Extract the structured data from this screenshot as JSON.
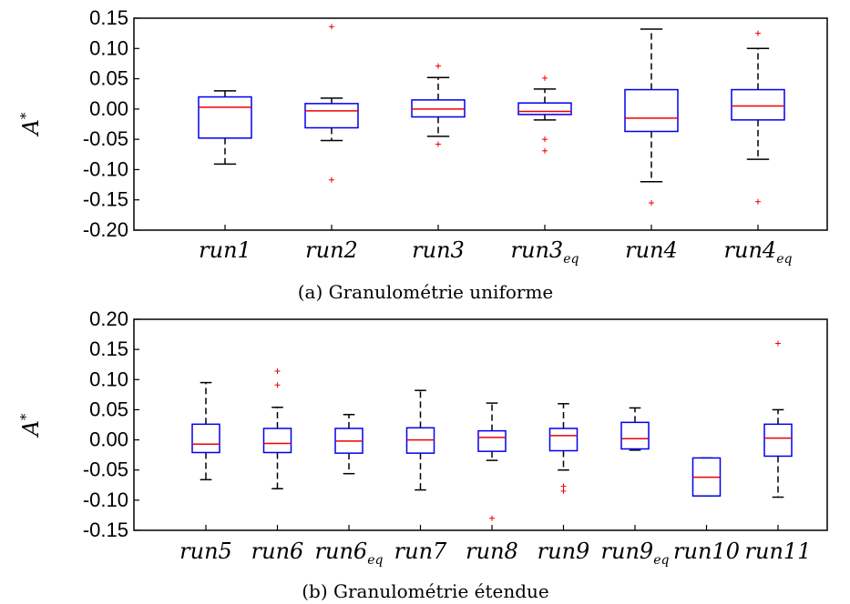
{
  "chart_data": [
    {
      "type": "box",
      "caption": "(a) Granulométrie uniforme",
      "ylabel": "A",
      "ylabel_sup": "*",
      "ylim": [
        -0.2,
        0.15
      ],
      "yticks": [
        "-0.20",
        "-0.15",
        "-0.10",
        "-0.05",
        "0.00",
        "0.05",
        "0.10",
        "0.15"
      ],
      "grid": false,
      "box_color": "#0000ee",
      "median_color": "#ee0000",
      "outlier_color": "#ee0000",
      "categories": [
        {
          "base": "run1",
          "sub": ""
        },
        {
          "base": "run2",
          "sub": ""
        },
        {
          "base": "run3",
          "sub": ""
        },
        {
          "base": "run3",
          "sub": "eq"
        },
        {
          "base": "run4",
          "sub": ""
        },
        {
          "base": "run4",
          "sub": "eq"
        }
      ],
      "boxes": [
        {
          "whislo": -0.091,
          "q1": -0.048,
          "med": 0.003,
          "q3": 0.02,
          "whishi": 0.03,
          "fliers": []
        },
        {
          "whislo": -0.052,
          "q1": -0.031,
          "med": -0.003,
          "q3": 0.009,
          "whishi": 0.018,
          "fliers": [
            0.136,
            -0.117
          ]
        },
        {
          "whislo": -0.045,
          "q1": -0.013,
          "med": 0.0,
          "q3": 0.015,
          "whishi": 0.052,
          "fliers": [
            0.071,
            -0.058
          ]
        },
        {
          "whislo": -0.018,
          "q1": -0.009,
          "med": -0.004,
          "q3": 0.01,
          "whishi": 0.033,
          "fliers": [
            0.051,
            -0.05,
            -0.069
          ]
        },
        {
          "whislo": -0.12,
          "q1": -0.037,
          "med": -0.015,
          "q3": 0.032,
          "whishi": 0.132,
          "fliers": [
            -0.155
          ]
        },
        {
          "whislo": -0.083,
          "q1": -0.018,
          "med": 0.005,
          "q3": 0.032,
          "whishi": 0.1,
          "fliers": [
            0.125,
            -0.153
          ]
        }
      ]
    },
    {
      "type": "box",
      "caption": "(b) Granulométrie étendue",
      "ylabel": "A",
      "ylabel_sup": "*",
      "ylim": [
        -0.15,
        0.2
      ],
      "yticks": [
        "-0.15",
        "-0.10",
        "-0.05",
        "0.00",
        "0.05",
        "0.10",
        "0.15",
        "0.20"
      ],
      "grid": false,
      "box_color": "#0000ee",
      "median_color": "#ee0000",
      "outlier_color": "#ee0000",
      "categories": [
        {
          "base": "run5",
          "sub": ""
        },
        {
          "base": "run6",
          "sub": ""
        },
        {
          "base": "run6",
          "sub": "eq"
        },
        {
          "base": "run7",
          "sub": ""
        },
        {
          "base": "run8",
          "sub": ""
        },
        {
          "base": "run9",
          "sub": ""
        },
        {
          "base": "run9",
          "sub": "eq"
        },
        {
          "base": "run10",
          "sub": ""
        },
        {
          "base": "run11",
          "sub": ""
        }
      ],
      "boxes": [
        {
          "whislo": -0.066,
          "q1": -0.021,
          "med": -0.007,
          "q3": 0.026,
          "whishi": 0.095,
          "fliers": []
        },
        {
          "whislo": -0.081,
          "q1": -0.021,
          "med": -0.006,
          "q3": 0.019,
          "whishi": 0.054,
          "fliers": [
            0.114,
            0.091
          ]
        },
        {
          "whislo": -0.056,
          "q1": -0.022,
          "med": -0.002,
          "q3": 0.019,
          "whishi": 0.042,
          "fliers": []
        },
        {
          "whislo": -0.083,
          "q1": -0.022,
          "med": 0.0,
          "q3": 0.02,
          "whishi": 0.082,
          "fliers": []
        },
        {
          "whislo": -0.034,
          "q1": -0.019,
          "med": 0.004,
          "q3": 0.015,
          "whishi": 0.061,
          "fliers": [
            -0.13
          ]
        },
        {
          "whislo": -0.05,
          "q1": -0.018,
          "med": 0.007,
          "q3": 0.019,
          "whishi": 0.06,
          "fliers": [
            -0.077,
            -0.085
          ]
        },
        {
          "whislo": -0.017,
          "q1": -0.015,
          "med": 0.002,
          "q3": 0.029,
          "whishi": 0.053,
          "fliers": []
        },
        {
          "whislo": -0.093,
          "q1": -0.093,
          "med": -0.062,
          "q3": -0.03,
          "whishi": -0.03,
          "fliers": []
        },
        {
          "whislo": -0.095,
          "q1": -0.027,
          "med": 0.003,
          "q3": 0.026,
          "whishi": 0.05,
          "fliers": [
            0.16
          ]
        }
      ]
    }
  ]
}
